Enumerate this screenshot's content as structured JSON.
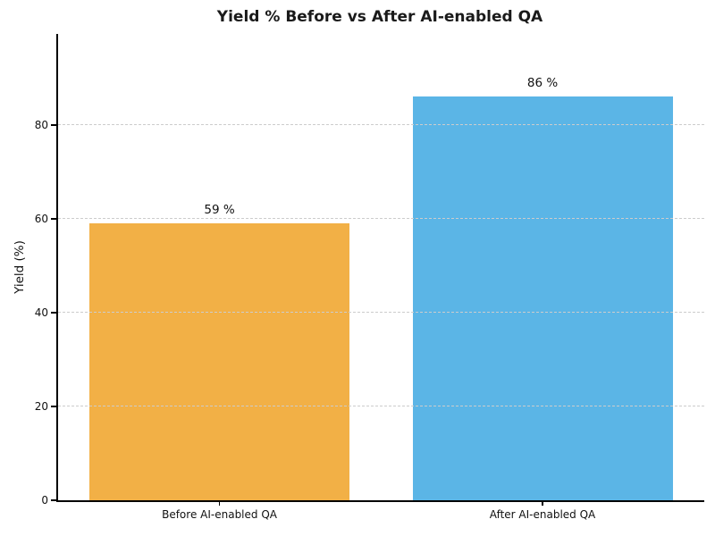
{
  "chart_data": {
    "type": "bar",
    "title": "Yield % Before vs After AI-enabled QA",
    "xlabel": "",
    "ylabel": "Yield (%)",
    "categories": [
      "Before AI-enabled QA",
      "After AI-enabled QA"
    ],
    "values": [
      59,
      86
    ],
    "value_labels": [
      "59 %",
      "86 %"
    ],
    "bar_colors": [
      "#F2B046",
      "#5BB5E6"
    ],
    "yticks": [
      0,
      20,
      40,
      60,
      80
    ],
    "ylim": [
      0,
      99.4
    ],
    "grid": "horizontal dashed gridlines drawn above bars",
    "legend_position": "none"
  },
  "style": {
    "title_color": "#1a1a1a",
    "axis_color": "#000000",
    "grid_color": "#cccccc",
    "background": "#ffffff"
  }
}
